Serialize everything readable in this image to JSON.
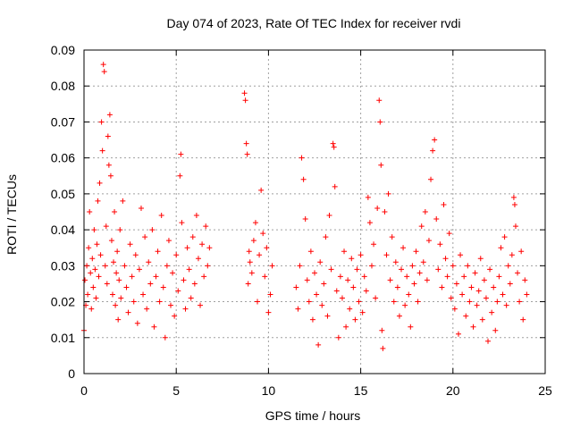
{
  "chart_data": {
    "type": "scatter",
    "title": "Day 074 of 2023, Rate Of TEC Index for receiver rvdi",
    "xlabel": "GPS time / hours",
    "ylabel": "ROTI / TECUs",
    "xlim": [
      0,
      25
    ],
    "ylim": [
      0,
      0.09
    ],
    "xticks": [
      0,
      5,
      10,
      15,
      20,
      25
    ],
    "yticks": [
      0,
      0.01,
      0.02,
      0.03,
      0.04,
      0.05,
      0.06,
      0.07,
      0.08,
      0.09
    ],
    "xtick_labels": [
      "0",
      "5",
      "10",
      "15",
      "20",
      "25"
    ],
    "ytick_labels": [
      "0",
      "0.01",
      "0.02",
      "0.03",
      "0.04",
      "0.05",
      "0.06",
      "0.07",
      "0.08",
      "0.09"
    ],
    "grid": true,
    "marker": "+",
    "color": "#ff0000",
    "series": [
      {
        "name": "ROTI",
        "points": [
          [
            0.0,
            0.012
          ],
          [
            0.05,
            0.026
          ],
          [
            0.1,
            0.019
          ],
          [
            0.15,
            0.03
          ],
          [
            0.2,
            0.022
          ],
          [
            0.25,
            0.035
          ],
          [
            0.3,
            0.045
          ],
          [
            0.35,
            0.028
          ],
          [
            0.4,
            0.018
          ],
          [
            0.45,
            0.032
          ],
          [
            0.5,
            0.024
          ],
          [
            0.55,
            0.04
          ],
          [
            0.6,
            0.029
          ],
          [
            0.65,
            0.021
          ],
          [
            0.7,
            0.036
          ],
          [
            0.75,
            0.048
          ],
          [
            0.8,
            0.027
          ],
          [
            0.85,
            0.053
          ],
          [
            0.9,
            0.033
          ],
          [
            0.95,
            0.07
          ],
          [
            1.0,
            0.062
          ],
          [
            1.05,
            0.086
          ],
          [
            1.1,
            0.084
          ],
          [
            1.15,
            0.03
          ],
          [
            1.2,
            0.041
          ],
          [
            1.25,
            0.025
          ],
          [
            1.3,
            0.066
          ],
          [
            1.35,
            0.058
          ],
          [
            1.4,
            0.072
          ],
          [
            1.45,
            0.055
          ],
          [
            1.5,
            0.037
          ],
          [
            1.55,
            0.022
          ],
          [
            1.6,
            0.031
          ],
          [
            1.65,
            0.045
          ],
          [
            1.7,
            0.019
          ],
          [
            1.75,
            0.028
          ],
          [
            1.8,
            0.034
          ],
          [
            1.85,
            0.015
          ],
          [
            1.9,
            0.026
          ],
          [
            1.95,
            0.04
          ],
          [
            2.0,
            0.021
          ],
          [
            2.1,
            0.048
          ],
          [
            2.2,
            0.03
          ],
          [
            2.3,
            0.024
          ],
          [
            2.4,
            0.017
          ],
          [
            2.5,
            0.036
          ],
          [
            2.6,
            0.027
          ],
          [
            2.7,
            0.02
          ],
          [
            2.8,
            0.033
          ],
          [
            2.9,
            0.014
          ],
          [
            3.0,
            0.029
          ],
          [
            3.1,
            0.046
          ],
          [
            3.2,
            0.022
          ],
          [
            3.3,
            0.038
          ],
          [
            3.4,
            0.018
          ],
          [
            3.5,
            0.031
          ],
          [
            3.6,
            0.025
          ],
          [
            3.7,
            0.04
          ],
          [
            3.8,
            0.013
          ],
          [
            3.9,
            0.027
          ],
          [
            4.0,
            0.034
          ],
          [
            4.1,
            0.02
          ],
          [
            4.2,
            0.044
          ],
          [
            4.3,
            0.024
          ],
          [
            4.4,
            0.01
          ],
          [
            4.5,
            0.03
          ],
          [
            4.6,
            0.037
          ],
          [
            4.7,
            0.019
          ],
          [
            4.8,
            0.028
          ],
          [
            4.9,
            0.016
          ],
          [
            5.0,
            0.033
          ],
          [
            5.1,
            0.023
          ],
          [
            5.2,
            0.055
          ],
          [
            5.25,
            0.061
          ],
          [
            5.3,
            0.042
          ],
          [
            5.4,
            0.026
          ],
          [
            5.5,
            0.018
          ],
          [
            5.6,
            0.035
          ],
          [
            5.7,
            0.029
          ],
          [
            5.8,
            0.021
          ],
          [
            5.9,
            0.038
          ],
          [
            6.0,
            0.025
          ],
          [
            6.1,
            0.044
          ],
          [
            6.2,
            0.032
          ],
          [
            6.3,
            0.019
          ],
          [
            6.4,
            0.036
          ],
          [
            6.5,
            0.027
          ],
          [
            6.6,
            0.041
          ],
          [
            6.7,
            0.03
          ],
          [
            6.8,
            0.035
          ],
          [
            8.7,
            0.078
          ],
          [
            8.75,
            0.076
          ],
          [
            8.8,
            0.064
          ],
          [
            8.85,
            0.061
          ],
          [
            8.9,
            0.025
          ],
          [
            8.95,
            0.034
          ],
          [
            9.0,
            0.031
          ],
          [
            9.1,
            0.028
          ],
          [
            9.2,
            0.037
          ],
          [
            9.3,
            0.042
          ],
          [
            9.4,
            0.02
          ],
          [
            9.5,
            0.033
          ],
          [
            9.6,
            0.051
          ],
          [
            9.7,
            0.039
          ],
          [
            9.8,
            0.027
          ],
          [
            9.9,
            0.035
          ],
          [
            10.0,
            0.017
          ],
          [
            10.1,
            0.022
          ],
          [
            10.2,
            0.03
          ],
          [
            11.5,
            0.024
          ],
          [
            11.6,
            0.018
          ],
          [
            11.7,
            0.03
          ],
          [
            11.8,
            0.06
          ],
          [
            11.9,
            0.054
          ],
          [
            12.0,
            0.043
          ],
          [
            12.1,
            0.026
          ],
          [
            12.2,
            0.02
          ],
          [
            12.3,
            0.034
          ],
          [
            12.4,
            0.015
          ],
          [
            12.5,
            0.028
          ],
          [
            12.6,
            0.022
          ],
          [
            12.7,
            0.008
          ],
          [
            12.8,
            0.031
          ],
          [
            12.9,
            0.019
          ],
          [
            13.0,
            0.025
          ],
          [
            13.1,
            0.038
          ],
          [
            13.2,
            0.016
          ],
          [
            13.3,
            0.044
          ],
          [
            13.4,
            0.029
          ],
          [
            13.5,
            0.064
          ],
          [
            13.55,
            0.063
          ],
          [
            13.6,
            0.052
          ],
          [
            13.7,
            0.023
          ],
          [
            13.8,
            0.01
          ],
          [
            13.9,
            0.027
          ],
          [
            14.0,
            0.021
          ],
          [
            14.1,
            0.034
          ],
          [
            14.2,
            0.013
          ],
          [
            14.3,
            0.026
          ],
          [
            14.4,
            0.018
          ],
          [
            14.5,
            0.032
          ],
          [
            14.6,
            0.024
          ],
          [
            14.7,
            0.015
          ],
          [
            14.8,
            0.029
          ],
          [
            14.9,
            0.02
          ],
          [
            15.0,
            0.033
          ],
          [
            15.1,
            0.017
          ],
          [
            15.2,
            0.027
          ],
          [
            15.3,
            0.023
          ],
          [
            15.4,
            0.049
          ],
          [
            15.5,
            0.042
          ],
          [
            15.6,
            0.03
          ],
          [
            15.7,
            0.036
          ],
          [
            15.8,
            0.021
          ],
          [
            15.9,
            0.046
          ],
          [
            16.0,
            0.076
          ],
          [
            16.05,
            0.07
          ],
          [
            16.1,
            0.058
          ],
          [
            16.15,
            0.012
          ],
          [
            16.2,
            0.007
          ],
          [
            16.3,
            0.045
          ],
          [
            16.4,
            0.033
          ],
          [
            16.5,
            0.05
          ],
          [
            16.6,
            0.026
          ],
          [
            16.7,
            0.038
          ],
          [
            16.8,
            0.02
          ],
          [
            16.9,
            0.031
          ],
          [
            17.0,
            0.024
          ],
          [
            17.1,
            0.016
          ],
          [
            17.2,
            0.029
          ],
          [
            17.3,
            0.035
          ],
          [
            17.4,
            0.019
          ],
          [
            17.5,
            0.027
          ],
          [
            17.6,
            0.022
          ],
          [
            17.7,
            0.013
          ],
          [
            17.8,
            0.03
          ],
          [
            17.9,
            0.025
          ],
          [
            18.0,
            0.034
          ],
          [
            18.1,
            0.02
          ],
          [
            18.2,
            0.028
          ],
          [
            18.3,
            0.041
          ],
          [
            18.4,
            0.031
          ],
          [
            18.5,
            0.045
          ],
          [
            18.6,
            0.026
          ],
          [
            18.7,
            0.037
          ],
          [
            18.8,
            0.054
          ],
          [
            18.9,
            0.062
          ],
          [
            19.0,
            0.065
          ],
          [
            19.1,
            0.043
          ],
          [
            19.2,
            0.029
          ],
          [
            19.3,
            0.036
          ],
          [
            19.4,
            0.024
          ],
          [
            19.5,
            0.047
          ],
          [
            19.6,
            0.032
          ],
          [
            19.7,
            0.027
          ],
          [
            19.8,
            0.039
          ],
          [
            19.9,
            0.021
          ],
          [
            20.0,
            0.03
          ],
          [
            20.1,
            0.018
          ],
          [
            20.2,
            0.025
          ],
          [
            20.3,
            0.011
          ],
          [
            20.4,
            0.033
          ],
          [
            20.5,
            0.022
          ],
          [
            20.6,
            0.027
          ],
          [
            20.7,
            0.016
          ],
          [
            20.8,
            0.03
          ],
          [
            20.9,
            0.02
          ],
          [
            21.0,
            0.024
          ],
          [
            21.1,
            0.013
          ],
          [
            21.2,
            0.028
          ],
          [
            21.3,
            0.019
          ],
          [
            21.4,
            0.023
          ],
          [
            21.5,
            0.032
          ],
          [
            21.6,
            0.015
          ],
          [
            21.7,
            0.026
          ],
          [
            21.8,
            0.021
          ],
          [
            21.9,
            0.009
          ],
          [
            22.0,
            0.029
          ],
          [
            22.1,
            0.017
          ],
          [
            22.2,
            0.024
          ],
          [
            22.3,
            0.012
          ],
          [
            22.4,
            0.02
          ],
          [
            22.5,
            0.027
          ],
          [
            22.6,
            0.035
          ],
          [
            22.7,
            0.022
          ],
          [
            22.8,
            0.038
          ],
          [
            22.9,
            0.019
          ],
          [
            23.0,
            0.03
          ],
          [
            23.1,
            0.025
          ],
          [
            23.2,
            0.033
          ],
          [
            23.3,
            0.049
          ],
          [
            23.35,
            0.047
          ],
          [
            23.4,
            0.041
          ],
          [
            23.5,
            0.028
          ],
          [
            23.6,
            0.02
          ],
          [
            23.7,
            0.034
          ],
          [
            23.8,
            0.015
          ],
          [
            23.9,
            0.026
          ],
          [
            24.0,
            0.022
          ]
        ]
      }
    ]
  }
}
